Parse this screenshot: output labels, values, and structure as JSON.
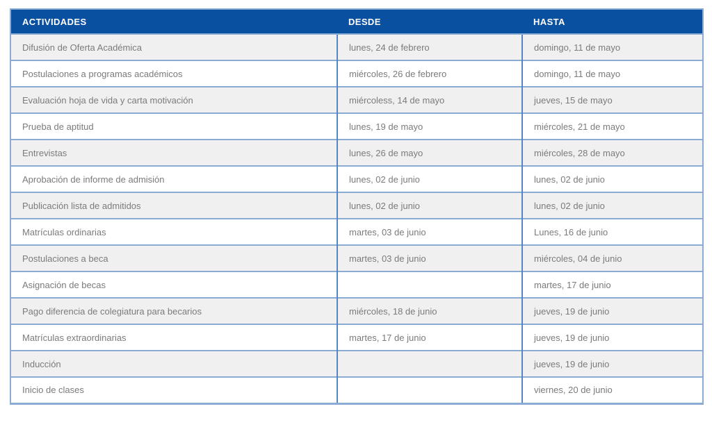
{
  "colors": {
    "header_bg": "#0a50a0",
    "header_text": "#ffffff",
    "row_bg": "#ffffff",
    "row_alt_bg": "#f0f0f0",
    "cell_text": "#7b7b7b",
    "border_h": "#8aabd3",
    "border_v": "#5585c3"
  },
  "table": {
    "columns": [
      {
        "key": "actividad",
        "label": "ACTIVIDADES"
      },
      {
        "key": "desde",
        "label": "DESDE"
      },
      {
        "key": "hasta",
        "label": "HASTA"
      }
    ],
    "rows": [
      {
        "actividad": "Difusión de Oferta Académica",
        "desde": "lunes, 24 de febrero",
        "hasta": "domingo, 11 de mayo"
      },
      {
        "actividad": "Postulaciones a programas académicos",
        "desde": "miércoles, 26 de febrero",
        "hasta": "domingo, 11 de mayo"
      },
      {
        "actividad": "Evaluación hoja de vida y carta motivación",
        "desde": "miércoless, 14 de mayo",
        "hasta": "jueves, 15 de mayo"
      },
      {
        "actividad": "Prueba de aptitud",
        "desde": "lunes, 19 de mayo",
        "hasta": "miércoles, 21 de mayo"
      },
      {
        "actividad": "Entrevistas",
        "desde": "lunes, 26 de mayo",
        "hasta": "miércoles, 28 de mayo"
      },
      {
        "actividad": "Aprobación de informe de admisión",
        "desde": "lunes, 02 de junio",
        "hasta": "lunes, 02 de junio"
      },
      {
        "actividad": "Publicación lista de admitidos",
        "desde": "lunes, 02 de junio",
        "hasta": "lunes, 02 de junio"
      },
      {
        "actividad": "Matrículas ordinarias",
        "desde": "martes, 03 de junio",
        "hasta": "Lunes, 16 de junio"
      },
      {
        "actividad": "Postulaciones a beca",
        "desde": "martes, 03 de junio",
        "hasta": "miércoles, 04 de junio"
      },
      {
        "actividad": "Asignación de becas",
        "desde": "",
        "hasta": "martes, 17 de junio"
      },
      {
        "actividad": "Pago diferencia de colegiatura para becarios",
        "desde": "miércoles, 18 de junio",
        "hasta": "jueves, 19 de junio"
      },
      {
        "actividad": "Matrículas extraordinarias",
        "desde": "martes, 17 de junio",
        "hasta": "jueves, 19 de junio"
      },
      {
        "actividad": "Inducción",
        "desde": "",
        "hasta": "jueves, 19 de junio"
      },
      {
        "actividad": "Inicio de clases",
        "desde": "",
        "hasta": "viernes, 20 de junio"
      }
    ]
  }
}
